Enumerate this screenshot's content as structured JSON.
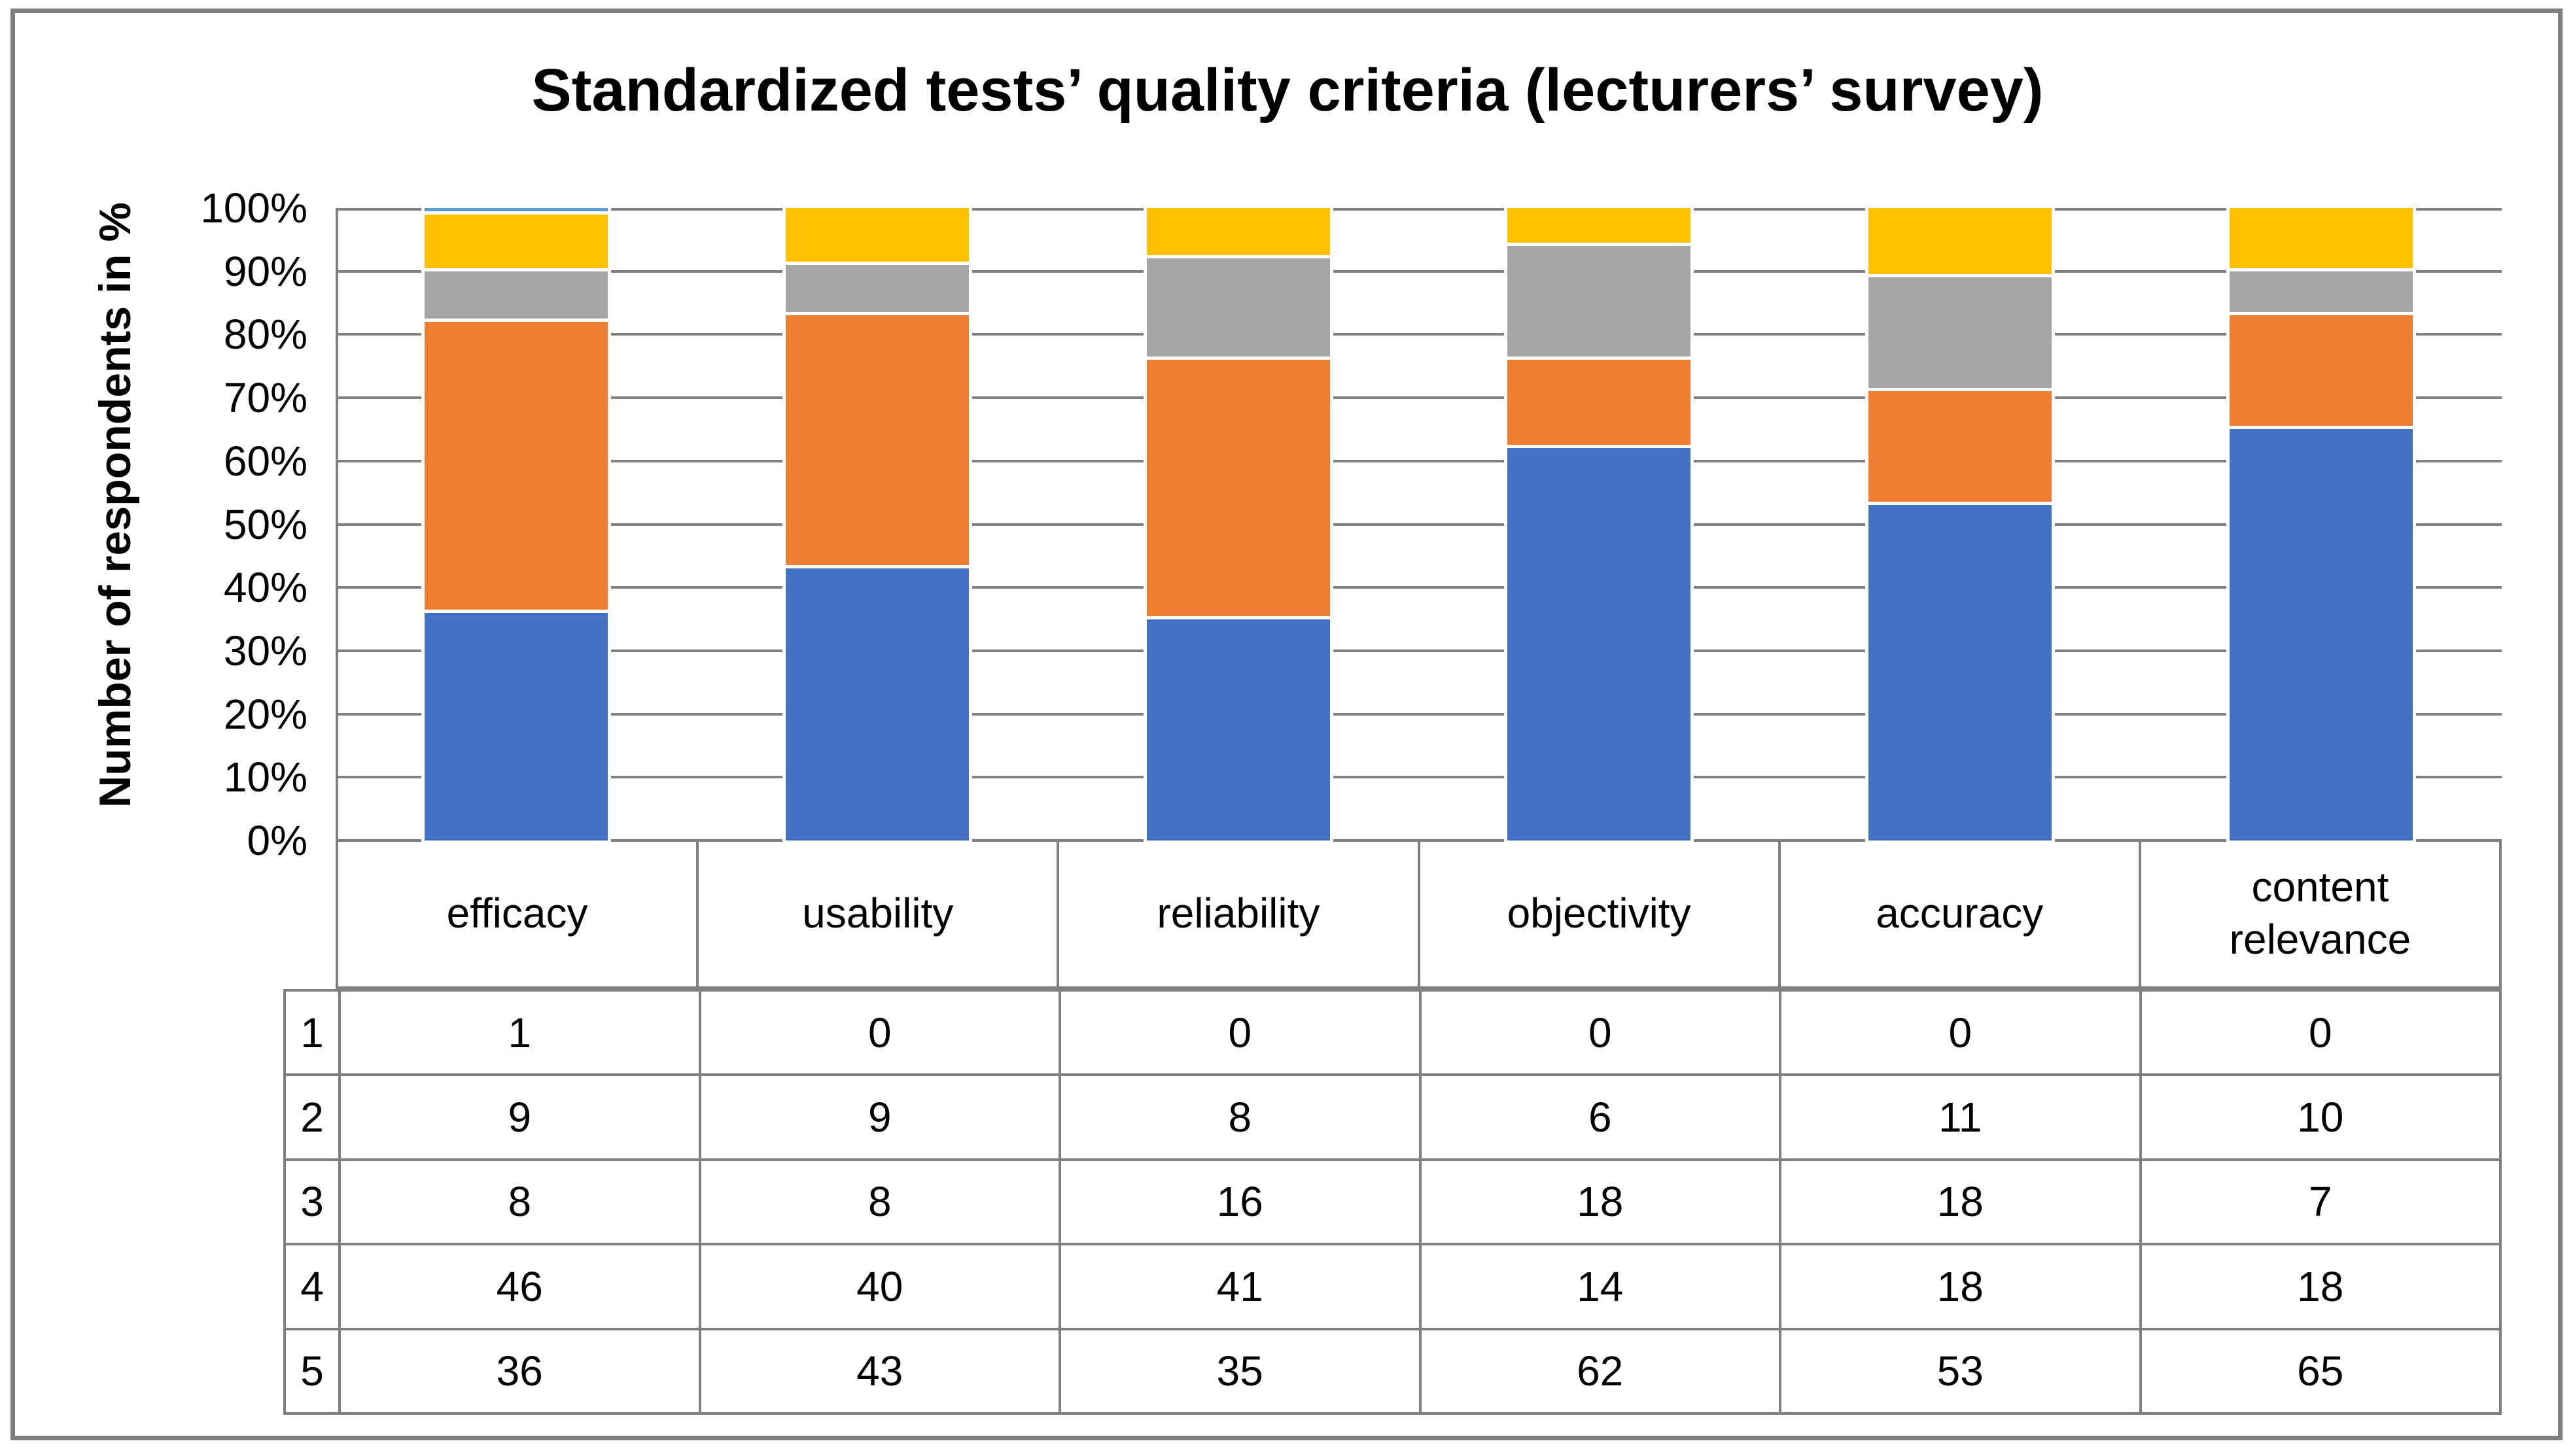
{
  "chart_data": {
    "type": "bar",
    "subtype": "stacked-100-percent-column",
    "title": "Standardized tests’ quality criteria (lecturers’ survey)",
    "xlabel": "",
    "ylabel": "Number of respondents in %",
    "ylim": [
      0,
      100
    ],
    "ytick_step": 10,
    "yticks_labels": [
      "0%",
      "10%",
      "20%",
      "30%",
      "40%",
      "50%",
      "60%",
      "70%",
      "80%",
      "90%",
      "100%"
    ],
    "grid": true,
    "legend_position": "none (data table below chart)",
    "categories": [
      "efficacy",
      "usability",
      "reliability",
      "objectivity",
      "accuracy",
      "content relevance"
    ],
    "series": [
      {
        "name": "1",
        "color": "#5B9BD5",
        "values": [
          1,
          0,
          0,
          0,
          0,
          0
        ]
      },
      {
        "name": "2",
        "color": "#FFC000",
        "values": [
          9,
          9,
          8,
          6,
          11,
          10
        ]
      },
      {
        "name": "3",
        "color": "#A5A5A5",
        "values": [
          8,
          8,
          16,
          18,
          18,
          7
        ]
      },
      {
        "name": "4",
        "color": "#ED7D31",
        "values": [
          46,
          40,
          41,
          14,
          18,
          18
        ]
      },
      {
        "name": "5",
        "color": "#4472C4",
        "values": [
          36,
          43,
          35,
          62,
          53,
          65
        ]
      }
    ],
    "stack_order_bottom_to_top": [
      "5",
      "4",
      "3",
      "2",
      "1"
    ],
    "colors": {
      "gridline": "#808080",
      "table_border": "#808080",
      "text": "#000000",
      "background": "#FFFFFF",
      "outer_frame": "#808080"
    }
  }
}
